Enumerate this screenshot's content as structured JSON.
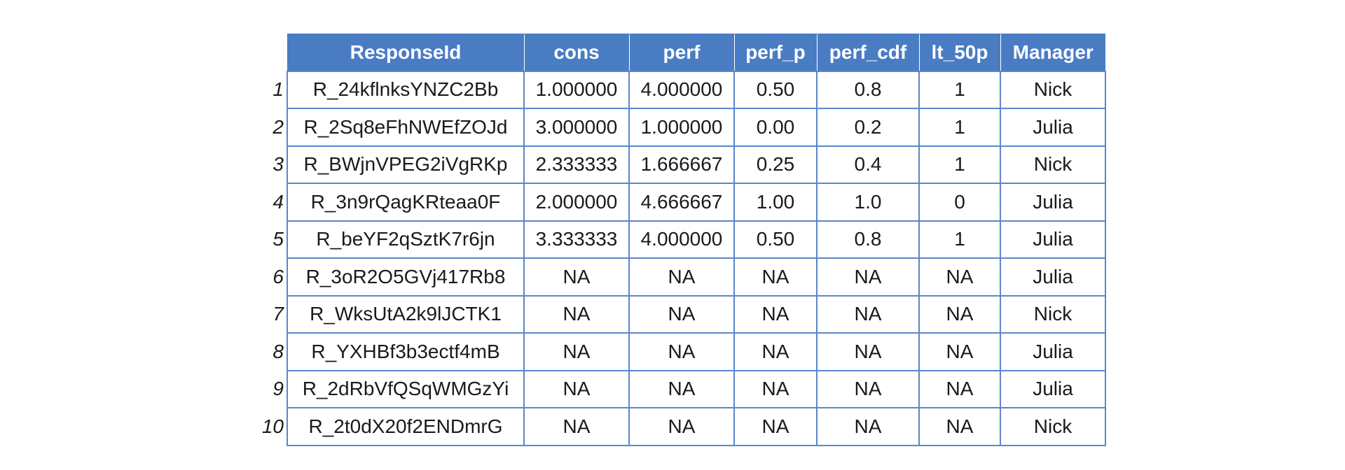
{
  "table": {
    "columns": [
      "ResponseId",
      "cons",
      "perf",
      "perf_p",
      "perf_cdf",
      "lt_50p",
      "Manager"
    ],
    "rows": [
      {
        "index": "1",
        "cells": [
          "R_24kflnksYNZC2Bb",
          "1.000000",
          "4.000000",
          "0.50",
          "0.8",
          "1",
          "Nick"
        ]
      },
      {
        "index": "2",
        "cells": [
          "R_2Sq8eFhNWEfZOJd",
          "3.000000",
          "1.000000",
          "0.00",
          "0.2",
          "1",
          "Julia"
        ]
      },
      {
        "index": "3",
        "cells": [
          "R_BWjnVPEG2iVgRKp",
          "2.333333",
          "1.666667",
          "0.25",
          "0.4",
          "1",
          "Nick"
        ]
      },
      {
        "index": "4",
        "cells": [
          "R_3n9rQagKRteaa0F",
          "2.000000",
          "4.666667",
          "1.00",
          "1.0",
          "0",
          "Julia"
        ]
      },
      {
        "index": "5",
        "cells": [
          "R_beYF2qSztK7r6jn",
          "3.333333",
          "4.000000",
          "0.50",
          "0.8",
          "1",
          "Julia"
        ]
      },
      {
        "index": "6",
        "cells": [
          "R_3oR2O5GVj417Rb8",
          "NA",
          "NA",
          "NA",
          "NA",
          "NA",
          "Julia"
        ]
      },
      {
        "index": "7",
        "cells": [
          "R_WksUtA2k9lJCTK1",
          "NA",
          "NA",
          "NA",
          "NA",
          "NA",
          "Nick"
        ]
      },
      {
        "index": "8",
        "cells": [
          "R_YXHBf3b3ectf4mB",
          "NA",
          "NA",
          "NA",
          "NA",
          "NA",
          "Julia"
        ]
      },
      {
        "index": "9",
        "cells": [
          "R_2dRbVfQSqWMGzYi",
          "NA",
          "NA",
          "NA",
          "NA",
          "NA",
          "Julia"
        ]
      },
      {
        "index": "10",
        "cells": [
          "R_2t0dX20f2ENDmrG",
          "NA",
          "NA",
          "NA",
          "NA",
          "NA",
          "Nick"
        ]
      }
    ]
  },
  "colors": {
    "header_bg": "#4a7cc4",
    "header_text": "#ffffff",
    "border": "#5b86cc"
  }
}
